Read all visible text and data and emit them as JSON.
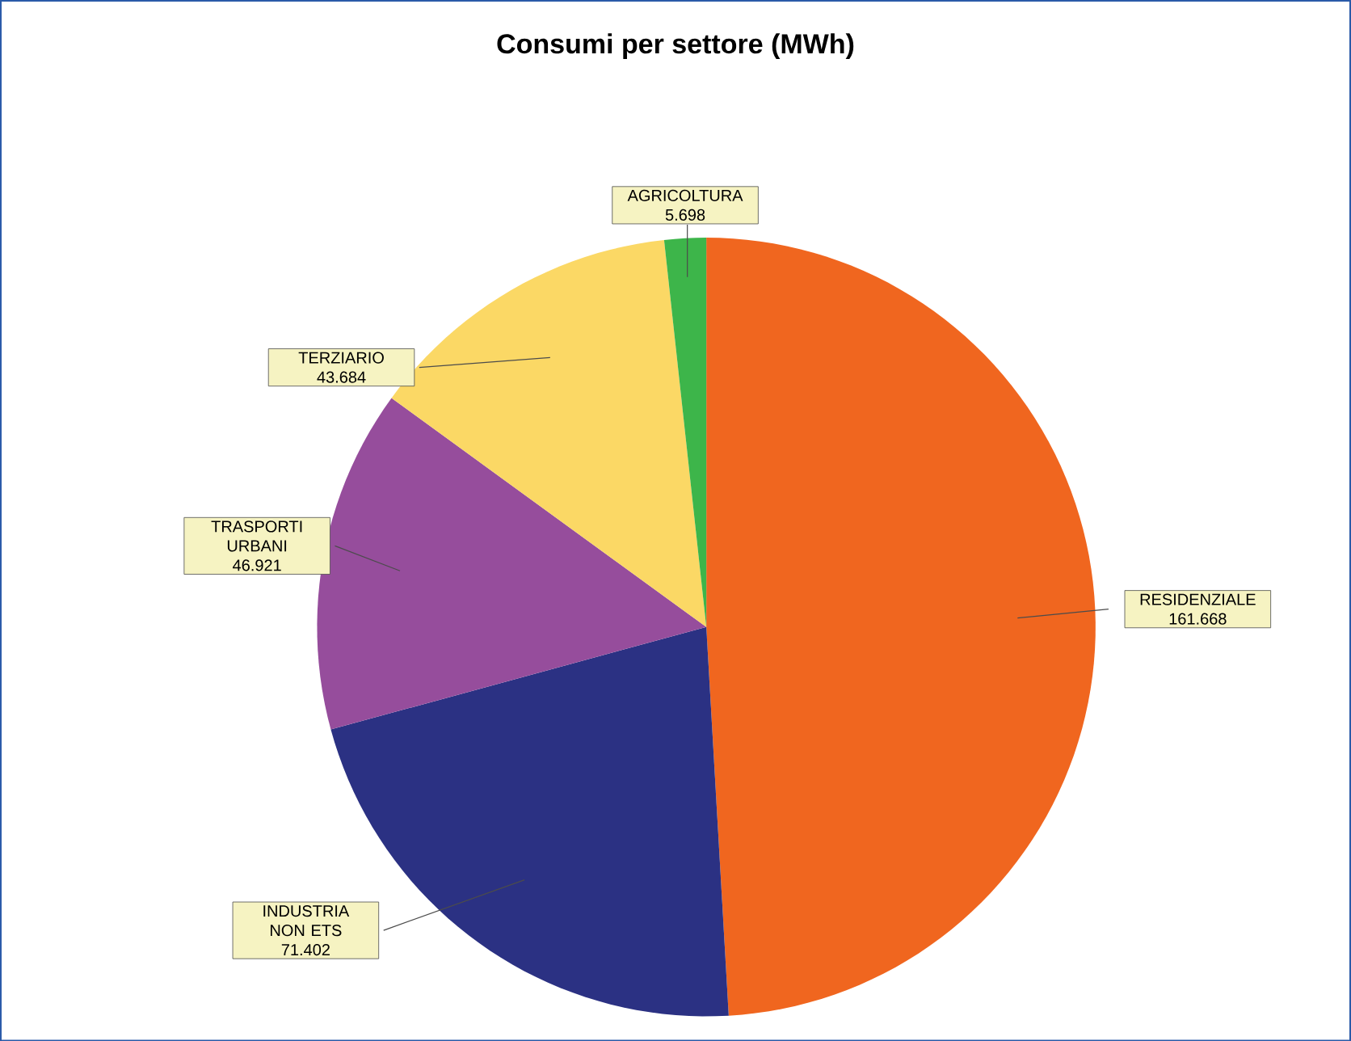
{
  "chart_data": {
    "type": "pie",
    "title": "Consumi per settore (MWh)",
    "categories": [
      "RESIDENZIALE",
      "INDUSTRIA NON ETS",
      "TRASPORTI URBANI",
      "TERZIARIO",
      "AGRICOLTURA"
    ],
    "values": [
      161668,
      71402,
      46921,
      43684,
      5698
    ],
    "value_labels": [
      "161.668",
      "71.402",
      "46.921",
      "43.684",
      "5.698"
    ],
    "colors": [
      "#f0661f",
      "#2b3183",
      "#964d9c",
      "#fbd865",
      "#3db54a"
    ]
  }
}
